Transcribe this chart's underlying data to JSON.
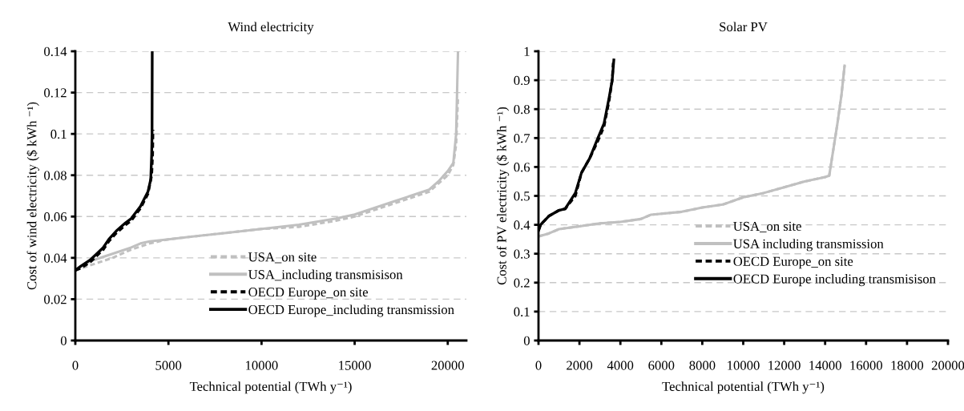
{
  "chart_data": [
    {
      "type": "line",
      "title": "Wind electricity",
      "xlabel": "Technical potential (TWh y⁻¹)",
      "ylabel": "Cost of wind electricity ($ kWh ⁻¹)",
      "xlim": [
        0,
        21000
      ],
      "xticks": [
        0,
        5000,
        10000,
        15000,
        20000
      ],
      "ylim": [
        0,
        0.14
      ],
      "yticks": [
        0,
        0.02,
        0.04,
        0.06,
        0.08,
        0.1,
        0.12,
        0.14
      ],
      "grid": "y",
      "legend": "bottom right",
      "series": [
        {
          "name": "USA_on site",
          "color": "#c0c0c0",
          "line_style": "dashed",
          "x": [
            0,
            1000,
            2000,
            3000,
            4000,
            5000,
            8000,
            10000,
            12000,
            14000,
            15000,
            17000,
            19000,
            20000,
            20300,
            20450,
            20550
          ],
          "values": [
            0.034,
            0.037,
            0.04,
            0.044,
            0.047,
            0.049,
            0.052,
            0.054,
            0.055,
            0.058,
            0.06,
            0.066,
            0.072,
            0.08,
            0.085,
            0.095,
            0.118
          ]
        },
        {
          "name": "USA_including transmisison",
          "color": "#c0c0c0",
          "line_style": "solid",
          "x": [
            0,
            500,
            1000,
            2000,
            3000,
            3500,
            4000,
            5000,
            6000,
            8000,
            10000,
            12000,
            14000,
            15000,
            17000,
            19000,
            19500,
            20000,
            20300,
            20450,
            20550
          ],
          "values": [
            0.034,
            0.037,
            0.039,
            0.042,
            0.045,
            0.047,
            0.048,
            0.049,
            0.05,
            0.052,
            0.054,
            0.056,
            0.059,
            0.061,
            0.067,
            0.073,
            0.077,
            0.082,
            0.086,
            0.1,
            0.14
          ]
        },
        {
          "name": "OECD Europe_on site",
          "color": "#000000",
          "line_style": "dashed",
          "x": [
            0,
            300,
            800,
            1500,
            1800,
            2200,
            2700,
            3000,
            3500,
            3900,
            4100,
            4150,
            4170
          ],
          "values": [
            0.034,
            0.035,
            0.038,
            0.044,
            0.048,
            0.052,
            0.056,
            0.058,
            0.064,
            0.071,
            0.08,
            0.09,
            0.102
          ]
        },
        {
          "name": "OECD Europe_including transmission",
          "color": "#000000",
          "line_style": "solid",
          "x": [
            0,
            300,
            800,
            1500,
            1800,
            2200,
            2700,
            3000,
            3500,
            3900,
            4050,
            4100,
            4120,
            4130
          ],
          "values": [
            0.034,
            0.036,
            0.039,
            0.045,
            0.049,
            0.053,
            0.057,
            0.059,
            0.065,
            0.072,
            0.078,
            0.09,
            0.1,
            0.14
          ]
        }
      ]
    },
    {
      "type": "line",
      "title": "Solar PV",
      "xlabel": "Technical potential (TWh y⁻¹)",
      "ylabel": "Cost of PV electricity ($ kWh ⁻¹)",
      "xlim": [
        0,
        20000
      ],
      "xticks": [
        0,
        2000,
        4000,
        6000,
        8000,
        10000,
        12000,
        14000,
        16000,
        18000,
        20000
      ],
      "ylim": [
        0,
        1
      ],
      "yticks": [
        0,
        0.1,
        0.2,
        0.3,
        0.4,
        0.5,
        0.6,
        0.7,
        0.8,
        0.9,
        1
      ],
      "grid": "y",
      "legend": "right",
      "series": [
        {
          "name": "USA_on site",
          "color": "#c0c0c0",
          "line_style": "dashed",
          "x": [
            0,
            500,
            1000,
            1500,
            2000,
            3000,
            4000,
            5000,
            5500,
            7000,
            8000,
            9000,
            10000,
            11000,
            12000,
            13000,
            14000,
            14200,
            14600,
            14800,
            14950
          ],
          "values": [
            0.36,
            0.37,
            0.385,
            0.39,
            0.395,
            0.405,
            0.41,
            0.42,
            0.435,
            0.445,
            0.46,
            0.47,
            0.495,
            0.51,
            0.53,
            0.55,
            0.565,
            0.57,
            0.75,
            0.85,
            0.95
          ]
        },
        {
          "name": "USA including transmission",
          "color": "#c0c0c0",
          "line_style": "solid",
          "x": [
            0,
            500,
            1000,
            1500,
            2000,
            3000,
            4000,
            5000,
            5500,
            7000,
            8000,
            9000,
            10000,
            11000,
            12000,
            13000,
            14000,
            14200,
            14600,
            14800,
            14950
          ],
          "values": [
            0.36,
            0.37,
            0.385,
            0.39,
            0.395,
            0.405,
            0.41,
            0.42,
            0.435,
            0.445,
            0.46,
            0.47,
            0.495,
            0.51,
            0.53,
            0.55,
            0.565,
            0.57,
            0.75,
            0.85,
            0.95
          ]
        },
        {
          "name": "OECD Europe_on site",
          "color": "#000000",
          "line_style": "dashed",
          "x": [
            0,
            100,
            500,
            1000,
            1300,
            1800,
            2100,
            2500,
            2900,
            3200,
            3450,
            3600,
            3650
          ],
          "values": [
            0.38,
            0.4,
            0.43,
            0.45,
            0.455,
            0.5,
            0.58,
            0.63,
            0.69,
            0.74,
            0.83,
            0.9,
            0.96
          ]
        },
        {
          "name": "OECD Europe including transmisison",
          "color": "#000000",
          "line_style": "solid",
          "x": [
            0,
            100,
            500,
            1000,
            1300,
            1800,
            2100,
            2500,
            2900,
            3200,
            3450,
            3600,
            3680
          ],
          "values": [
            0.38,
            0.4,
            0.43,
            0.45,
            0.455,
            0.51,
            0.58,
            0.63,
            0.7,
            0.75,
            0.84,
            0.9,
            0.97
          ]
        }
      ]
    }
  ]
}
